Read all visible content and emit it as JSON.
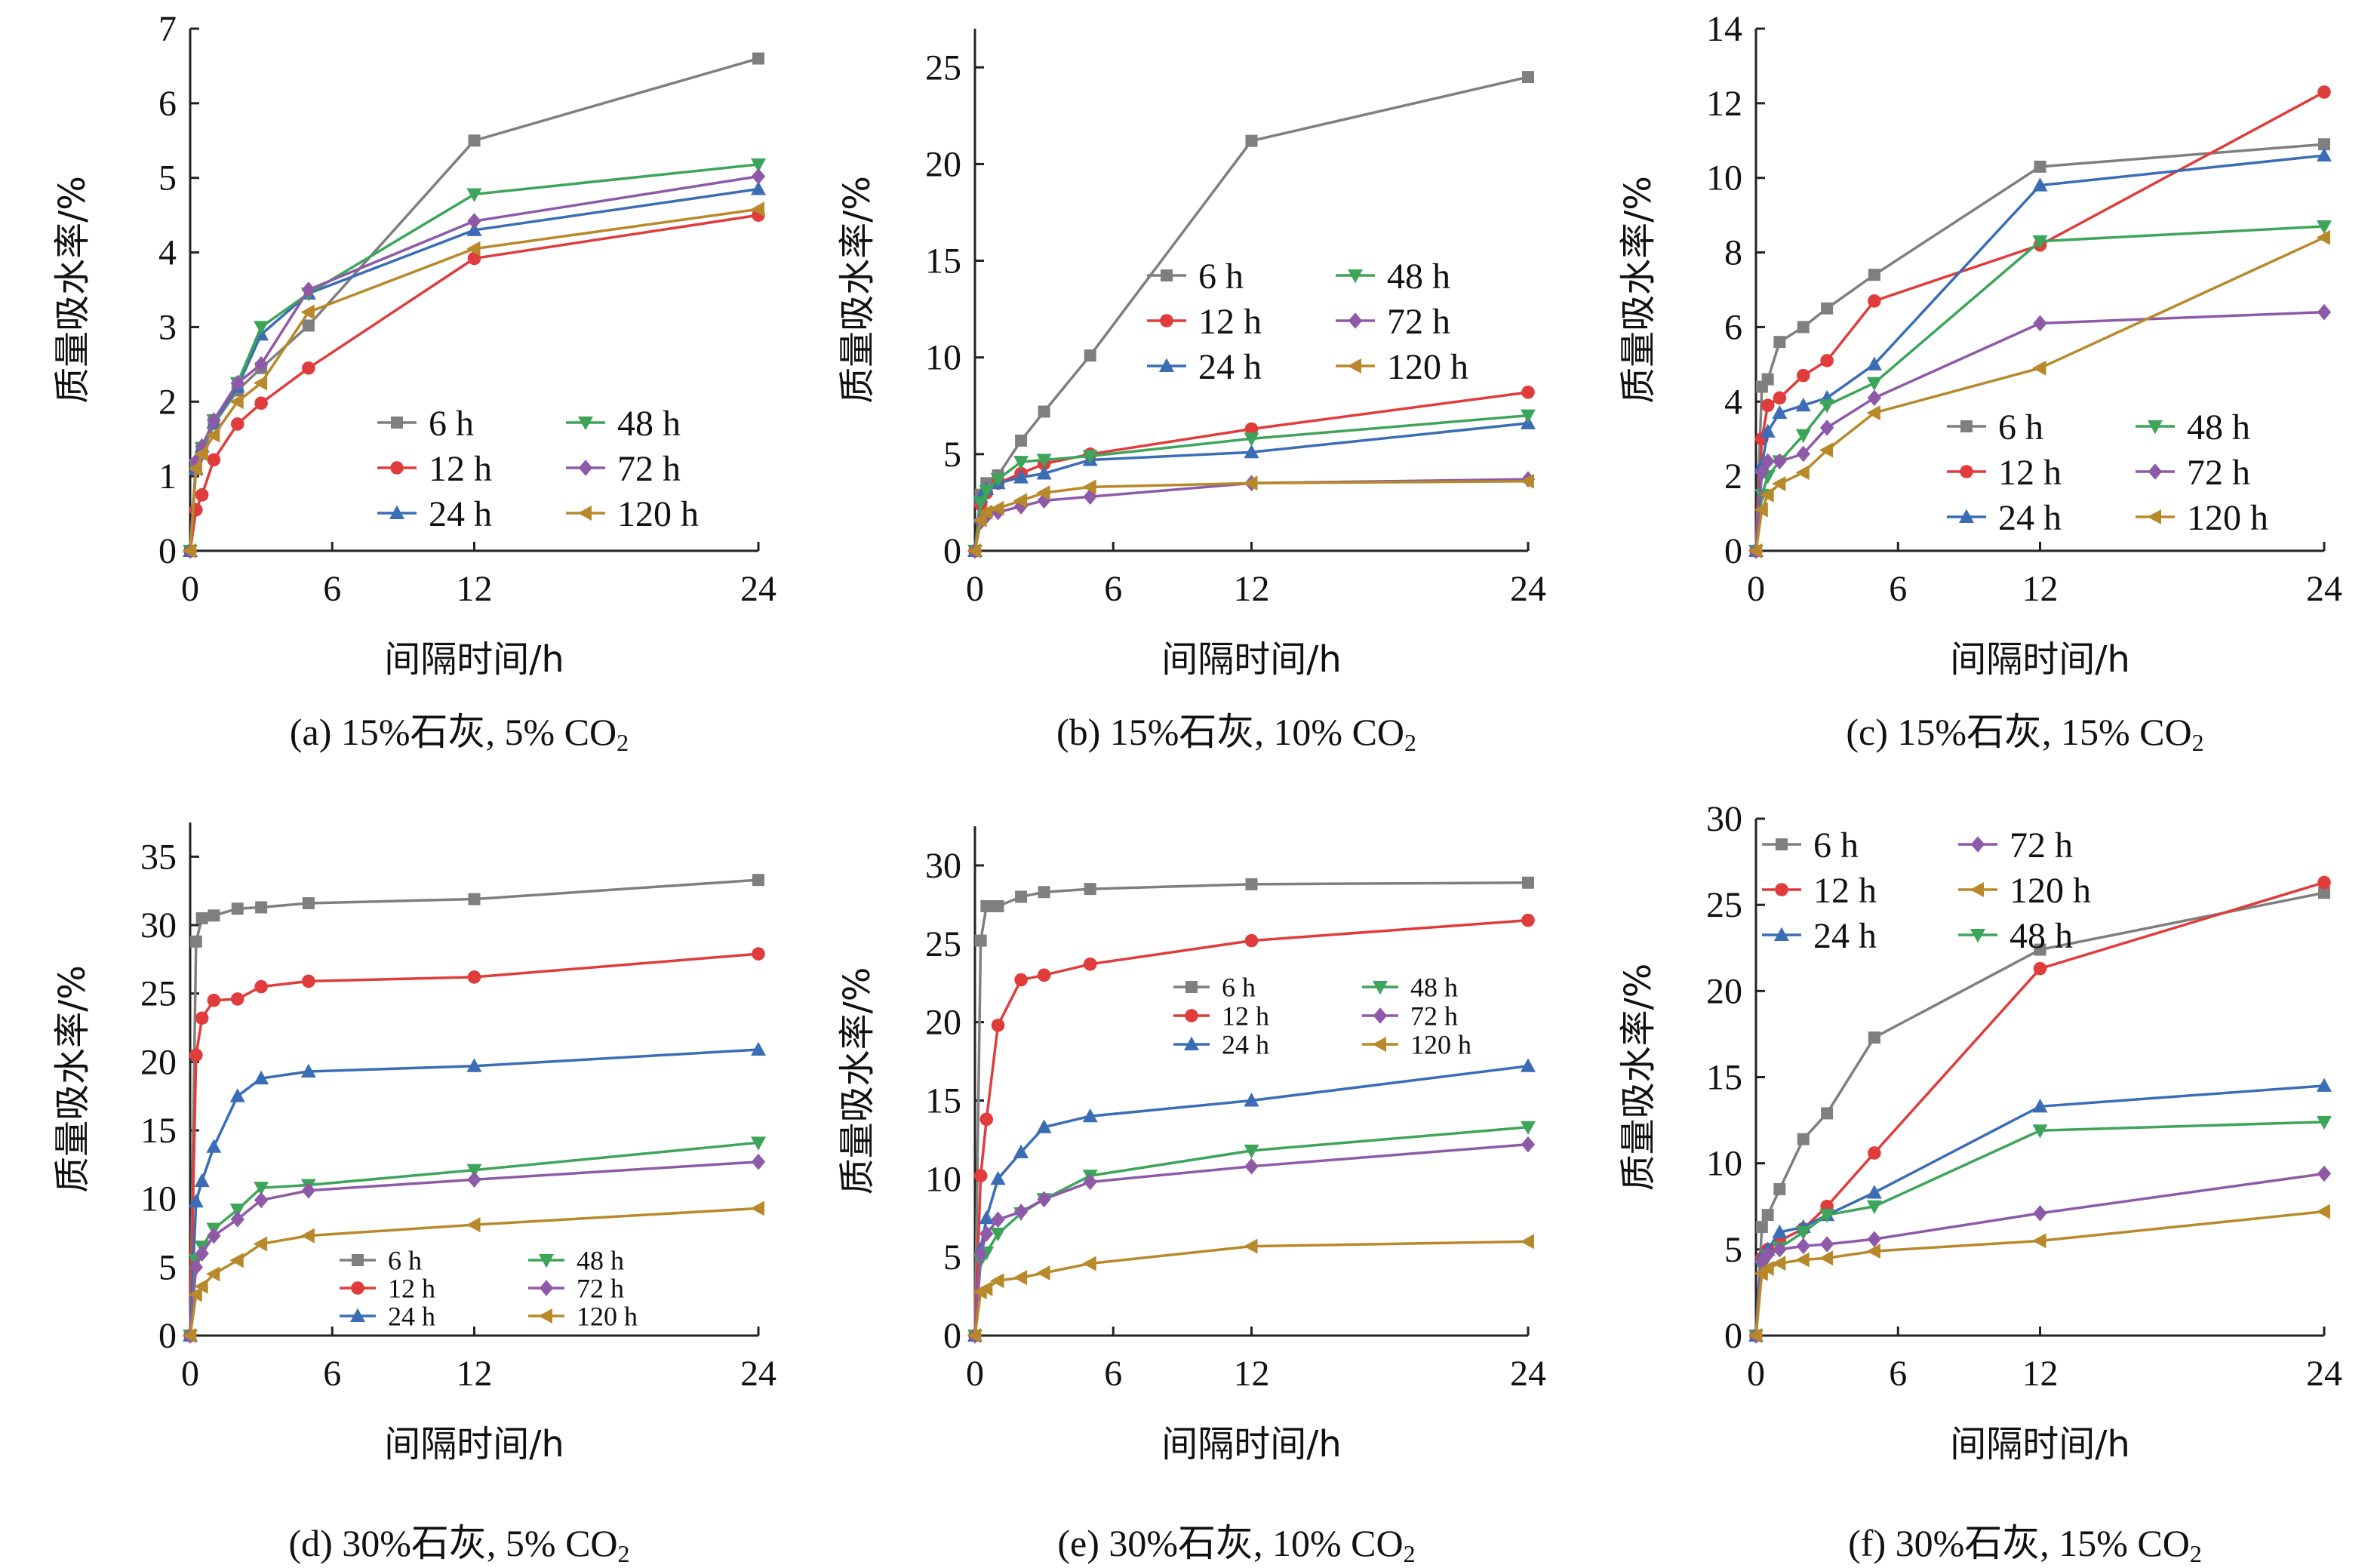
{
  "colors": {
    "6 h": "#7f7f7f",
    "12 h": "#e03c3c",
    "24 h": "#3b6db5",
    "48 h": "#3da55a",
    "72 h": "#8e5aa8",
    "120 h": "#b8892a"
  },
  "markers": {
    "6 h": "square",
    "12 h": "circle",
    "24 h": "triangle-up",
    "48 h": "triangle-down",
    "72 h": "diamond",
    "120 h": "triangle-left"
  },
  "chart_data": [
    {
      "id": "a",
      "type": "line",
      "caption": {
        "text": "(a) 15%石灰, 5% CO",
        "sub": "2"
      },
      "xlabel": "间隔时间/h",
      "ylabel": "质量吸水率/%",
      "xlim": [
        0,
        24
      ],
      "xticks": [
        0,
        6,
        12,
        24
      ],
      "ylim": [
        0,
        7
      ],
      "yticks": [
        0,
        1,
        2,
        3,
        4,
        5,
        6,
        7
      ],
      "x": [
        0,
        0.25,
        0.5,
        1,
        2,
        3,
        5,
        12,
        24
      ],
      "series": [
        {
          "name": "6 h",
          "values": [
            0,
            1.15,
            1.3,
            1.7,
            2.15,
            2.45,
            3.02,
            5.5,
            6.6
          ]
        },
        {
          "name": "12 h",
          "values": [
            0,
            0.55,
            0.75,
            1.22,
            1.7,
            1.98,
            2.45,
            3.92,
            4.5
          ]
        },
        {
          "name": "24 h",
          "values": [
            0,
            1.1,
            1.4,
            1.72,
            2.2,
            2.9,
            3.45,
            4.3,
            4.85
          ]
        },
        {
          "name": "48 h",
          "values": [
            0,
            1.15,
            1.38,
            1.75,
            2.25,
            3.0,
            3.45,
            4.78,
            5.18
          ]
        },
        {
          "name": "72 h",
          "values": [
            0,
            1.2,
            1.4,
            1.75,
            2.25,
            2.5,
            3.5,
            4.42,
            5.02
          ]
        },
        {
          "name": "120 h",
          "values": [
            0,
            1.1,
            1.3,
            1.55,
            2.0,
            2.25,
            3.2,
            4.05,
            4.58
          ]
        }
      ],
      "legend": {
        "pos": "bottom-right",
        "cols": 2,
        "order": [
          "6 h",
          "48 h",
          "12 h",
          "72 h",
          "24 h",
          "120 h"
        ]
      }
    },
    {
      "id": "b",
      "type": "line",
      "caption": {
        "text": "(b) 15%石灰, 10% CO",
        "sub": "2"
      },
      "xlabel": "间隔时间/h",
      "ylabel": "质量吸水率/%",
      "xlim": [
        0,
        24
      ],
      "xticks": [
        0,
        6,
        12,
        24
      ],
      "ylim": [
        0,
        27
      ],
      "yticks": [
        0,
        5,
        10,
        15,
        20,
        25
      ],
      "x": [
        0,
        0.25,
        0.5,
        1,
        2,
        3,
        5,
        12,
        24
      ],
      "series": [
        {
          "name": "6 h",
          "values": [
            0,
            2.9,
            3.5,
            3.9,
            5.7,
            7.2,
            10.1,
            21.2,
            24.5
          ]
        },
        {
          "name": "12 h",
          "values": [
            0,
            2.4,
            3.0,
            3.5,
            4.0,
            4.5,
            5.0,
            6.3,
            8.2
          ]
        },
        {
          "name": "24 h",
          "values": [
            0,
            2.8,
            3.2,
            3.5,
            3.8,
            4.0,
            4.7,
            5.1,
            6.6
          ]
        },
        {
          "name": "48 h",
          "values": [
            0,
            2.5,
            3.1,
            3.7,
            4.6,
            4.7,
            4.9,
            5.8,
            7.0
          ]
        },
        {
          "name": "72 h",
          "values": [
            0,
            1.5,
            1.8,
            2.0,
            2.3,
            2.6,
            2.8,
            3.5,
            3.7
          ]
        },
        {
          "name": "120 h",
          "values": [
            0,
            1.6,
            2.0,
            2.2,
            2.6,
            3.0,
            3.3,
            3.5,
            3.6
          ]
        }
      ],
      "legend": {
        "pos": "middle",
        "cols": 2,
        "order": [
          "6 h",
          "48 h",
          "12 h",
          "72 h",
          "24 h",
          "120 h"
        ]
      }
    },
    {
      "id": "c",
      "type": "line",
      "caption": {
        "text": "(c) 15%石灰, 15% CO",
        "sub": "2"
      },
      "xlabel": "间隔时间/h",
      "ylabel": "质量吸水率/%",
      "xlim": [
        0,
        24
      ],
      "xticks": [
        0,
        6,
        12,
        24
      ],
      "ylim": [
        0,
        14
      ],
      "yticks": [
        0,
        2,
        4,
        6,
        8,
        10,
        12,
        14
      ],
      "x": [
        0,
        0.25,
        0.5,
        1,
        2,
        3,
        5,
        12,
        24
      ],
      "series": [
        {
          "name": "6 h",
          "values": [
            0,
            4.4,
            4.6,
            5.6,
            6.0,
            6.5,
            7.4,
            10.3,
            10.9
          ]
        },
        {
          "name": "12 h",
          "values": [
            0,
            3.0,
            3.9,
            4.1,
            4.7,
            5.1,
            6.7,
            8.2,
            12.3
          ]
        },
        {
          "name": "24 h",
          "values": [
            0,
            2.3,
            3.2,
            3.7,
            3.9,
            4.1,
            5.0,
            9.8,
            10.6
          ]
        },
        {
          "name": "48 h",
          "values": [
            0,
            1.5,
            2.0,
            2.4,
            3.1,
            3.9,
            4.5,
            8.3,
            8.7
          ]
        },
        {
          "name": "72 h",
          "values": [
            0,
            2.1,
            2.4,
            2.4,
            2.6,
            3.3,
            4.1,
            6.1,
            6.4
          ]
        },
        {
          "name": "120 h",
          "values": [
            0,
            1.1,
            1.5,
            1.8,
            2.1,
            2.7,
            3.7,
            4.9,
            8.4
          ]
        }
      ],
      "legend": {
        "pos": "bottom-right",
        "cols": 2,
        "order": [
          "6 h",
          "48 h",
          "12 h",
          "72 h",
          "24 h",
          "120 h"
        ]
      }
    },
    {
      "id": "d",
      "type": "line",
      "caption": {
        "text": "(d) 30%石灰, 5% CO",
        "sub": "2"
      },
      "xlabel": "间隔时间/h",
      "ylabel": "质量吸水率/%",
      "xlim": [
        0,
        24
      ],
      "xticks": [
        0,
        6,
        12,
        24
      ],
      "ylim": [
        0,
        37.5
      ],
      "yticks": [
        0,
        5,
        10,
        15,
        20,
        25,
        30,
        35
      ],
      "x": [
        0,
        0.25,
        0.5,
        1,
        2,
        3,
        5,
        12,
        24
      ],
      "series": [
        {
          "name": "6 h",
          "values": [
            0,
            28.8,
            30.5,
            30.7,
            31.2,
            31.3,
            31.6,
            31.9,
            33.3
          ]
        },
        {
          "name": "12 h",
          "values": [
            0,
            20.5,
            23.2,
            24.5,
            24.6,
            25.5,
            25.9,
            26.2,
            27.9
          ]
        },
        {
          "name": "24 h",
          "values": [
            0,
            9.8,
            11.3,
            13.8,
            17.5,
            18.8,
            19.3,
            19.7,
            20.9
          ]
        },
        {
          "name": "48 h",
          "values": [
            0,
            5.5,
            6.5,
            7.8,
            9.2,
            10.8,
            11.0,
            12.1,
            14.1
          ]
        },
        {
          "name": "72 h",
          "values": [
            0,
            5.0,
            6.0,
            7.3,
            8.5,
            9.9,
            10.6,
            11.4,
            12.7
          ]
        },
        {
          "name": "120 h",
          "values": [
            0,
            3.0,
            3.6,
            4.5,
            5.5,
            6.7,
            7.3,
            8.1,
            9.3
          ]
        }
      ],
      "legend": {
        "pos": "bottom-right",
        "cols": 2,
        "order": [
          "6 h",
          "48 h",
          "12 h",
          "72 h",
          "24 h",
          "120 h"
        ]
      }
    },
    {
      "id": "e",
      "type": "line",
      "caption": {
        "text": "(e) 30%石灰, 10% CO",
        "sub": "2"
      },
      "xlabel": "间隔时间/h",
      "ylabel": "质量吸水率/%",
      "xlim": [
        0,
        24
      ],
      "xticks": [
        0,
        6,
        12,
        24
      ],
      "ylim": [
        0,
        32.5
      ],
      "yticks": [
        0,
        5,
        10,
        15,
        20,
        25,
        30
      ],
      "x": [
        0,
        0.25,
        0.5,
        1,
        2,
        3,
        5,
        12,
        24
      ],
      "series": [
        {
          "name": "6 h",
          "values": [
            0,
            25.2,
            27.4,
            27.4,
            28.0,
            28.3,
            28.5,
            28.8,
            28.9
          ]
        },
        {
          "name": "12 h",
          "values": [
            0,
            10.2,
            13.8,
            19.8,
            22.7,
            23.0,
            23.7,
            25.2,
            26.5
          ]
        },
        {
          "name": "24 h",
          "values": [
            0,
            5.5,
            7.5,
            10.0,
            11.7,
            13.3,
            14.0,
            15.0,
            17.2
          ]
        },
        {
          "name": "48 h",
          "values": [
            0,
            4.8,
            5.3,
            6.5,
            7.8,
            8.7,
            10.2,
            11.8,
            13.3
          ]
        },
        {
          "name": "72 h",
          "values": [
            0,
            5.2,
            6.5,
            7.4,
            7.9,
            8.7,
            9.8,
            10.8,
            12.2
          ]
        },
        {
          "name": "120 h",
          "values": [
            0,
            2.8,
            3.0,
            3.5,
            3.7,
            4.0,
            4.6,
            5.7,
            6.0
          ]
        }
      ],
      "legend": {
        "pos": "middle-right",
        "cols": 2,
        "order": [
          "6 h",
          "48 h",
          "12 h",
          "72 h",
          "24 h",
          "120 h"
        ]
      }
    },
    {
      "id": "f",
      "type": "line",
      "caption": {
        "text": "(f) 30%石灰, 15% CO",
        "sub": "2"
      },
      "xlabel": "间隔时间/h",
      "ylabel": "质量吸水率/%",
      "xlim": [
        0,
        24
      ],
      "xticks": [
        0,
        6,
        12,
        24
      ],
      "ylim": [
        0,
        30
      ],
      "yticks": [
        0,
        5,
        10,
        15,
        20,
        25,
        30
      ],
      "x": [
        0,
        0.25,
        0.5,
        1,
        2,
        3,
        5,
        12,
        24
      ],
      "series": [
        {
          "name": "6 h",
          "values": [
            0,
            6.3,
            7.0,
            8.5,
            11.4,
            12.9,
            17.3,
            22.4,
            25.7
          ]
        },
        {
          "name": "12 h",
          "values": [
            0,
            4.5,
            5.0,
            5.5,
            6.2,
            7.5,
            10.6,
            21.3,
            26.3
          ]
        },
        {
          "name": "24 h",
          "values": [
            0,
            4.6,
            5.0,
            6.0,
            6.3,
            7.0,
            8.3,
            13.3,
            14.5
          ]
        },
        {
          "name": "48 h",
          "values": [
            0,
            4.0,
            4.6,
            5.1,
            6.0,
            7.0,
            7.5,
            11.9,
            12.4
          ]
        },
        {
          "name": "72 h",
          "values": [
            0,
            4.3,
            4.7,
            5.0,
            5.2,
            5.3,
            5.6,
            7.1,
            9.4
          ]
        },
        {
          "name": "120 h",
          "values": [
            0,
            3.6,
            3.9,
            4.2,
            4.4,
            4.5,
            4.9,
            5.5,
            7.2
          ]
        }
      ],
      "legend": {
        "pos": "top-left",
        "cols": 2,
        "order": [
          "6 h",
          "72 h",
          "12 h",
          "120 h",
          "24 h",
          "48 h"
        ]
      }
    }
  ]
}
